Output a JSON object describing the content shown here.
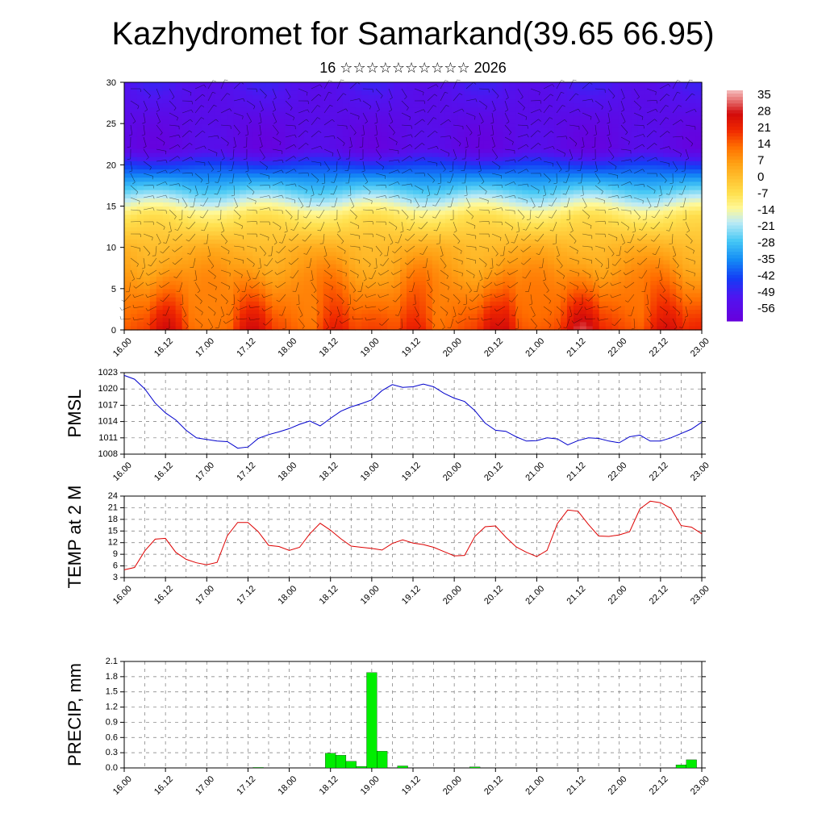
{
  "header": {
    "title": "Kazhydromet for Samarkand(39.65 66.95)",
    "subtitle": "16 ☆☆☆☆☆☆☆☆☆☆ 2026"
  },
  "colors": {
    "pmsl_line": "#0000cc",
    "temp_line": "#dd0000",
    "precip_bar": "#00ee00"
  },
  "colorbar": {
    "labels": [
      "35",
      "28",
      "21",
      "14",
      "7",
      "0",
      "-7",
      "-14",
      "-21",
      "-28",
      "-35",
      "-42",
      "-49",
      "-56"
    ]
  },
  "chart_data": [
    {
      "type": "heatmap",
      "name_ref": "cross-section",
      "ylim": [
        0,
        30
      ],
      "yticks": [
        0,
        5,
        10,
        15,
        20,
        25,
        30
      ],
      "xticks": [
        "16.00",
        "16.12",
        "17.00",
        "17.12",
        "18.00",
        "18.12",
        "19.00",
        "19.12",
        "20.00",
        "20.12",
        "21.00",
        "21.12",
        "22.00",
        "22.12",
        "23.00"
      ],
      "colorbar_range": [
        -60,
        38
      ],
      "description_levels": [
        {
          "level": 0,
          "temp": 16
        },
        {
          "level": 5,
          "temp": 10
        },
        {
          "level": 10,
          "temp": 3
        },
        {
          "level": 14,
          "temp": -8
        },
        {
          "level": 17,
          "temp": -25
        },
        {
          "level": 20,
          "temp": -42
        },
        {
          "level": 22,
          "temp": -56
        },
        {
          "level": 25,
          "temp": -55
        },
        {
          "level": 30,
          "temp": -50
        }
      ]
    },
    {
      "type": "line",
      "ylabel": "PMSL",
      "ylim": [
        1008,
        1023
      ],
      "yticks": [
        1008,
        1011,
        1014,
        1017,
        1020,
        1023
      ],
      "xticks": [
        "16.00",
        "16.12",
        "17.00",
        "17.12",
        "18.00",
        "18.12",
        "19.00",
        "19.12",
        "20.00",
        "20.12",
        "21.00",
        "21.12",
        "22.00",
        "22.12",
        "23.00"
      ],
      "x_hours": [
        0,
        3,
        6,
        9,
        12,
        15,
        18,
        21,
        24,
        27,
        30,
        33,
        36,
        39,
        42,
        45,
        48,
        51,
        54,
        57,
        60,
        63,
        66,
        69,
        72,
        75,
        78,
        81,
        84,
        87,
        90,
        93,
        96,
        99,
        102,
        105,
        108,
        111,
        114,
        117,
        120,
        123,
        126,
        129,
        132,
        135,
        138,
        141,
        144,
        147,
        150,
        153,
        156,
        159,
        162,
        165,
        168
      ],
      "values": [
        1022.5,
        1021.8,
        1020.0,
        1017.4,
        1015.6,
        1014.3,
        1012.4,
        1011.0,
        1010.7,
        1010.4,
        1010.3,
        1009.1,
        1009.3,
        1010.9,
        1011.6,
        1012.1,
        1012.7,
        1013.5,
        1014.1,
        1013.2,
        1014.6,
        1015.9,
        1016.7,
        1017.3,
        1018.0,
        1019.7,
        1020.8,
        1020.3,
        1020.4,
        1020.9,
        1020.4,
        1019.2,
        1018.3,
        1017.7,
        1016.0,
        1013.7,
        1012.4,
        1012.2,
        1011.2,
        1010.4,
        1010.5,
        1011.0,
        1010.8,
        1009.7,
        1010.5,
        1011.0,
        1010.9,
        1010.4,
        1010.1,
        1011.2,
        1011.5,
        1010.4,
        1010.4,
        1011.0,
        1011.8,
        1012.6,
        1013.9
      ]
    },
    {
      "type": "line",
      "ylabel": "TEMP at 2 M",
      "ylim": [
        3,
        24
      ],
      "yticks": [
        3,
        6,
        9,
        12,
        15,
        18,
        21,
        24
      ],
      "xticks": [
        "16.00",
        "16.12",
        "17.00",
        "17.12",
        "18.00",
        "18.12",
        "19.00",
        "19.12",
        "20.00",
        "20.12",
        "21.00",
        "21.12",
        "22.00",
        "22.12",
        "23.00"
      ],
      "x_hours": [
        0,
        3,
        6,
        9,
        12,
        15,
        18,
        21,
        24,
        27,
        30,
        33,
        36,
        39,
        42,
        45,
        48,
        51,
        54,
        57,
        60,
        63,
        66,
        69,
        72,
        75,
        78,
        81,
        84,
        87,
        90,
        93,
        96,
        99,
        102,
        105,
        108,
        111,
        114,
        117,
        120,
        123,
        126,
        129,
        132,
        135,
        138,
        141,
        144,
        147,
        150,
        153,
        156,
        159,
        162,
        165,
        168
      ],
      "values": [
        5.0,
        5.6,
        9.9,
        12.9,
        13.1,
        9.5,
        7.7,
        6.8,
        6.3,
        6.9,
        13.8,
        17.2,
        17.2,
        14.8,
        11.3,
        11.0,
        10.0,
        10.8,
        14.3,
        17.0,
        15.2,
        13.0,
        11.1,
        10.8,
        10.5,
        10.1,
        11.8,
        12.7,
        11.9,
        11.5,
        10.8,
        9.7,
        8.6,
        8.7,
        13.6,
        16.1,
        16.3,
        13.4,
        10.9,
        9.5,
        8.4,
        10.0,
        16.9,
        20.4,
        20.1,
        16.7,
        13.7,
        13.6,
        14.0,
        14.8,
        20.7,
        22.7,
        22.3,
        20.9,
        16.4,
        16.0,
        14.3
      ]
    },
    {
      "type": "bar",
      "ylabel": "PRECIP, mm",
      "ylim": [
        0,
        2.1
      ],
      "yticks": [
        "0.0",
        "0.3",
        "0.6",
        "0.9",
        "1.2",
        "1.5",
        "1.8",
        "2.1"
      ],
      "xticks": [
        "16.00",
        "16.12",
        "17.00",
        "17.12",
        "18.00",
        "18.12",
        "19.00",
        "19.12",
        "20.00",
        "20.12",
        "21.00",
        "21.12",
        "22.00",
        "22.12",
        "23.00"
      ],
      "x_hours": [
        39,
        60,
        63,
        66,
        69,
        72,
        75,
        81,
        102,
        162,
        165
      ],
      "values": [
        0.01,
        0.29,
        0.25,
        0.13,
        0.03,
        1.88,
        0.33,
        0.04,
        0.02,
        0.06,
        0.16
      ]
    }
  ]
}
